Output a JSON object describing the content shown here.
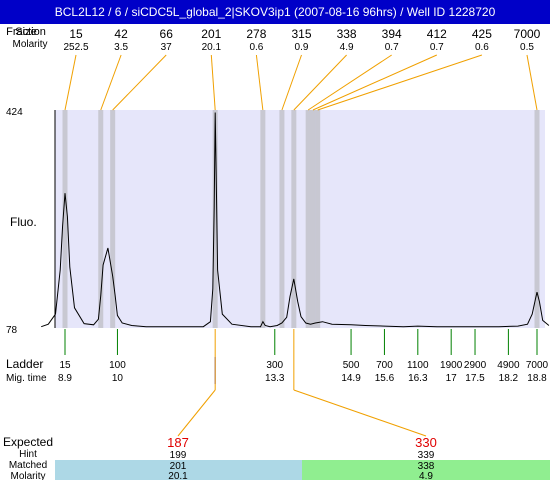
{
  "header": {
    "title": "BCL2L12 / 6 / siCDC5L_global_2|SKOV3ip1 (2007-08-16 96hrs) / Well ID 1228720"
  },
  "row_labels": {
    "top_size_label": "Size",
    "top_size_label_overprint": "Fraction",
    "top_molarity_label": "Molarity",
    "y_axis_label": "Fluo.",
    "ladder_label": "Ladder",
    "mig_time_label": "Mig. time",
    "expected_label": "Expected",
    "hint_label": "Hint",
    "matched_label": "Matched",
    "molarity_label": "Molarity"
  },
  "colors": {
    "title_bar": "#0000c8",
    "plot_background": "#e6e6fa",
    "band": "#c8c8d2",
    "peak_leader": "#f0a000",
    "ladder_tick": "#008000",
    "marker_tick": "#0000ff",
    "expected_text": "#e00000",
    "matched_box_1": "#add8e6",
    "matched_box_2": "#90ee90"
  },
  "chart_data": {
    "type": "line",
    "ylabel": "Fluo.",
    "ylim": [
      78,
      424
    ],
    "y_ticks": [
      "424",
      "78"
    ],
    "peaks": [
      {
        "size": "15",
        "molarity": "252.5",
        "mig_time": 8.9
      },
      {
        "size": "42",
        "molarity": "3.5",
        "mig_time": 9.65
      },
      {
        "size": "66",
        "molarity": "37",
        "mig_time": 9.9
      },
      {
        "size": "201",
        "molarity": "20.1",
        "mig_time": 12.05
      },
      {
        "size": "278",
        "molarity": "0.6",
        "mig_time": 13.05
      },
      {
        "size": "315",
        "molarity": "0.9",
        "mig_time": 13.45
      },
      {
        "size": "338",
        "molarity": "4.9",
        "mig_time": 13.7
      },
      {
        "size": "394",
        "molarity": "0.7",
        "mig_time": 14.0
      },
      {
        "size": "412",
        "molarity": "0.7",
        "mig_time": 14.1
      },
      {
        "size": "425",
        "molarity": "0.6",
        "mig_time": 14.2
      },
      {
        "size": "7000",
        "molarity": "0.5",
        "mig_time": 18.8
      }
    ],
    "ladder": [
      {
        "size": "15",
        "mig_time": "8.9",
        "t": 8.9
      },
      {
        "size": "100",
        "mig_time": "10",
        "t": 10.0
      },
      {
        "size": "300",
        "mig_time": "13.3",
        "t": 13.3
      },
      {
        "size": "500",
        "mig_time": "14.9",
        "t": 14.9
      },
      {
        "size": "700",
        "mig_time": "15.6",
        "t": 15.6
      },
      {
        "size": "1100",
        "mig_time": "16.3",
        "t": 16.3
      },
      {
        "size": "1900",
        "mig_time": "17",
        "t": 17.0
      },
      {
        "size": "2900",
        "mig_time": "17.5",
        "t": 17.5
      },
      {
        "size": "4900",
        "mig_time": "18.2",
        "t": 18.2
      },
      {
        "size": "7000",
        "mig_time": "18.8",
        "t": 18.8
      }
    ],
    "marker_time": 12.05,
    "expected": [
      {
        "expected": "187",
        "hint": "199",
        "matched": "201",
        "molarity": "20.1",
        "mig_time": 12.05
      },
      {
        "expected": "330",
        "hint": "339",
        "matched": "338",
        "molarity": "4.9",
        "mig_time": 13.7
      }
    ],
    "trace": {
      "t": [
        8.4,
        8.55,
        8.7,
        8.8,
        8.85,
        8.9,
        8.95,
        9.0,
        9.1,
        9.3,
        9.5,
        9.6,
        9.65,
        9.7,
        9.8,
        9.9,
        9.95,
        10.0,
        10.1,
        10.3,
        10.6,
        11.0,
        11.4,
        11.8,
        11.95,
        12.0,
        12.03,
        12.05,
        12.07,
        12.1,
        12.2,
        12.4,
        12.8,
        13.0,
        13.05,
        13.1,
        13.2,
        13.35,
        13.45,
        13.55,
        13.62,
        13.7,
        13.78,
        13.85,
        13.95,
        14.05,
        14.15,
        14.3,
        14.5,
        14.9,
        15.2,
        15.6,
        16.0,
        16.3,
        16.7,
        17.0,
        17.5,
        18.0,
        18.4,
        18.6,
        18.7,
        18.77,
        18.8,
        18.85,
        18.92,
        19.05
      ],
      "y": [
        80,
        84,
        100,
        170,
        240,
        292,
        255,
        175,
        110,
        85,
        83,
        92,
        130,
        178,
        205,
        160,
        130,
        98,
        86,
        82,
        80,
        80,
        80,
        80,
        88,
        140,
        270,
        420,
        330,
        170,
        100,
        84,
        80,
        80,
        88,
        82,
        80,
        82,
        86,
        95,
        128,
        156,
        120,
        96,
        86,
        84,
        86,
        88,
        84,
        83,
        82,
        81,
        80,
        81,
        80,
        80,
        80,
        80,
        81,
        84,
        100,
        125,
        135,
        120,
        90,
        82
      ]
    }
  }
}
